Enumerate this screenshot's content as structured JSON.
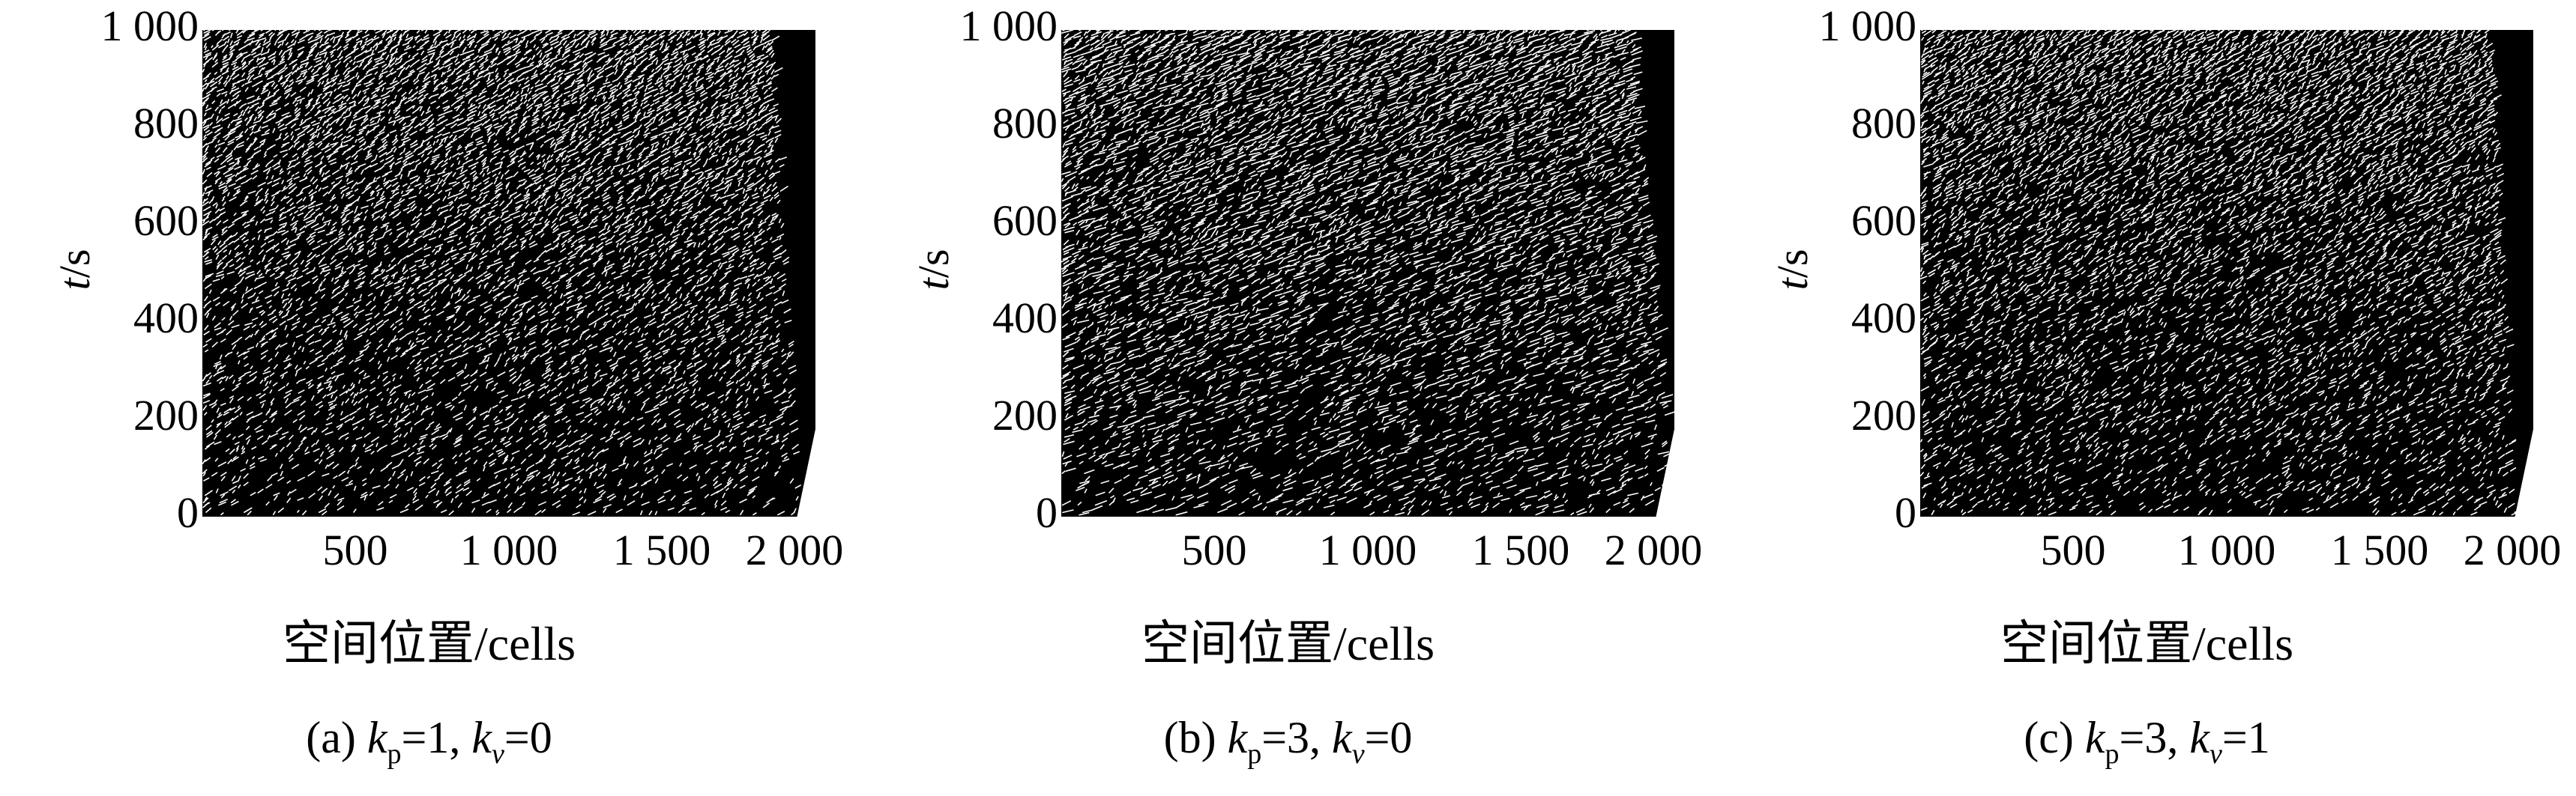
{
  "chart_data": [
    {
      "type": "heatmap",
      "title": "",
      "xlabel": "空间位置/cells",
      "ylabel_var": "t",
      "ylabel_unit": "/s",
      "xlim": [
        0,
        2000
      ],
      "ylim": [
        0,
        1000
      ],
      "x_ticks": [
        "500",
        "1 000",
        "1 500",
        "2 000"
      ],
      "x_tick_values": [
        500,
        1000,
        1500,
        2000
      ],
      "y_ticks": [
        "0",
        "200",
        "400",
        "600",
        "800",
        "1 000"
      ],
      "y_tick_values": [
        0,
        200,
        400,
        600,
        800,
        1000
      ],
      "caption": {
        "prefix": "(a) ",
        "k1": "k",
        "k1_sub": "p",
        "k1_val": "=1, ",
        "k2": "k",
        "k2_sub": "v",
        "k2_val": "=0"
      },
      "params": {
        "kp": 1,
        "kv": 0
      },
      "grid": false,
      "colors": {
        "occupied": "#000000",
        "empty": "#ffffff"
      }
    },
    {
      "type": "heatmap",
      "title": "",
      "xlabel": "空间位置/cells",
      "ylabel_var": "t",
      "ylabel_unit": "/s",
      "xlim": [
        0,
        2000
      ],
      "ylim": [
        0,
        1000
      ],
      "x_ticks": [
        "500",
        "1 000",
        "1 500",
        "2 000"
      ],
      "x_tick_values": [
        500,
        1000,
        1500,
        2000
      ],
      "y_ticks": [
        "0",
        "200",
        "400",
        "600",
        "800",
        "1 000"
      ],
      "y_tick_values": [
        0,
        200,
        400,
        600,
        800,
        1000
      ],
      "caption": {
        "prefix": "(b) ",
        "k1": "k",
        "k1_sub": "p",
        "k1_val": "=3, ",
        "k2": "k",
        "k2_sub": "v",
        "k2_val": "=0"
      },
      "params": {
        "kp": 3,
        "kv": 0
      },
      "grid": false,
      "colors": {
        "occupied": "#000000",
        "empty": "#ffffff"
      }
    },
    {
      "type": "heatmap",
      "title": "",
      "xlabel": "空间位置/cells",
      "ylabel_var": "t",
      "ylabel_unit": "/s",
      "xlim": [
        0,
        2000
      ],
      "ylim": [
        0,
        1000
      ],
      "x_ticks": [
        "500",
        "1 000",
        "1 500",
        "2 000"
      ],
      "x_tick_values": [
        500,
        1000,
        1500,
        2000
      ],
      "y_ticks": [
        "0",
        "200",
        "400",
        "600",
        "800",
        "1 000"
      ],
      "y_tick_values": [
        0,
        200,
        400,
        600,
        800,
        1000
      ],
      "caption": {
        "prefix": "(c) ",
        "k1": "k",
        "k1_sub": "p",
        "k1_val": "=3, ",
        "k2": "k",
        "k2_sub": "v",
        "k2_val": "=1"
      },
      "params": {
        "kp": 3,
        "kv": 1
      },
      "grid": false,
      "colors": {
        "occupied": "#000000",
        "empty": "#ffffff"
      }
    }
  ]
}
